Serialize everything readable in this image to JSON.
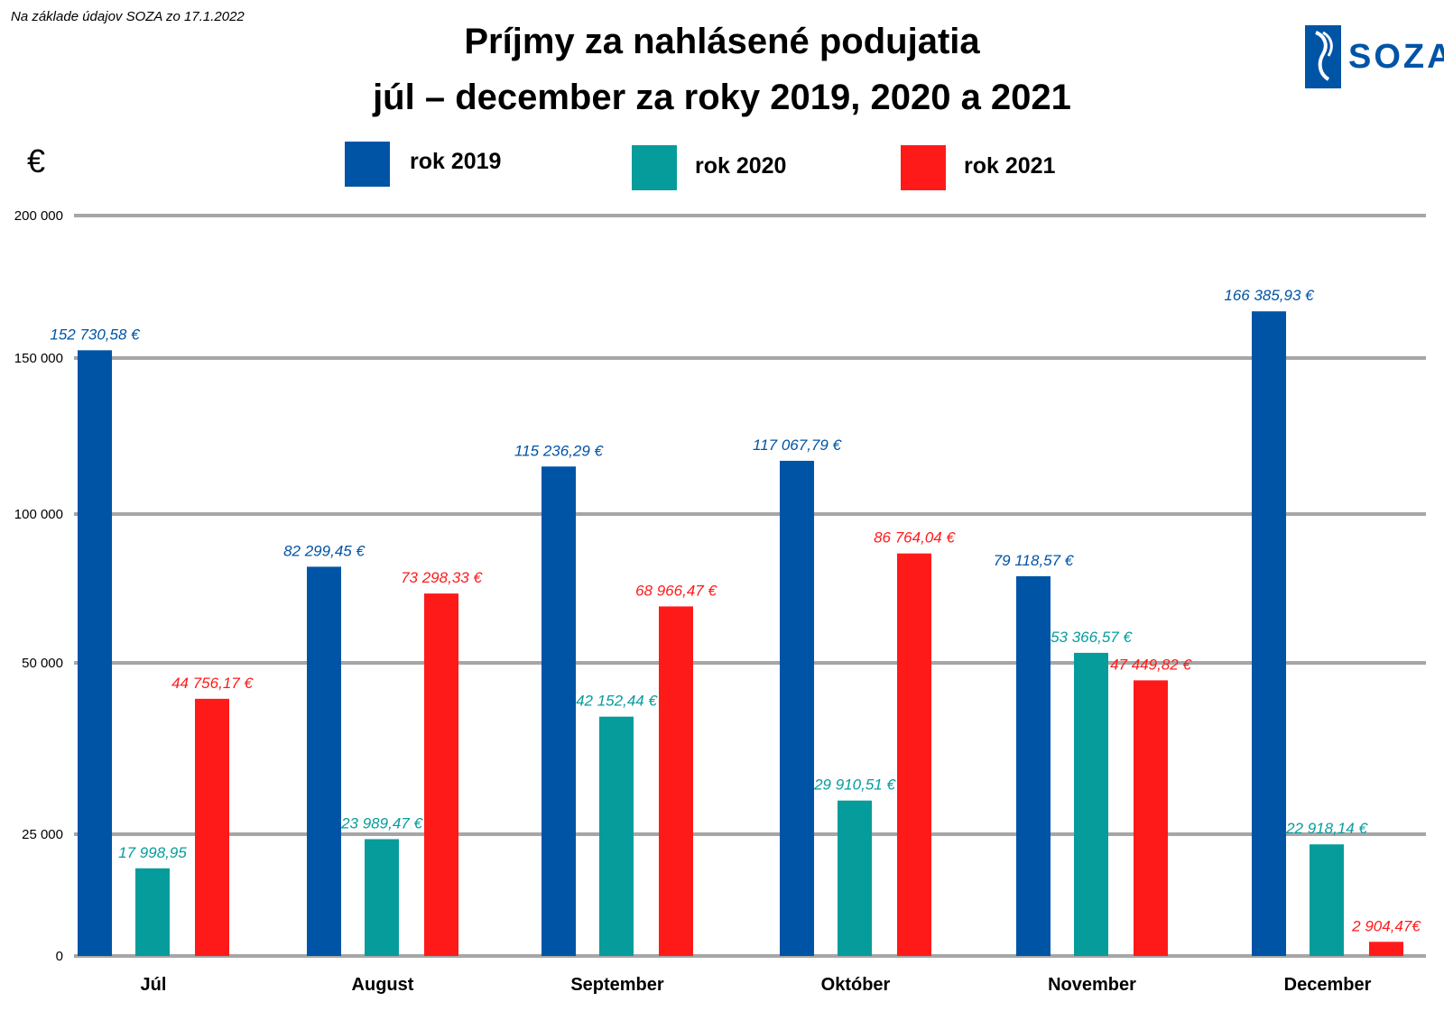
{
  "note": "Na základe údajov SOZA zo 17.1.2022",
  "title_line1": "Príjmy za nahlásené podujatia",
  "title_line2": "júl – december za roky 2019, 2020 a 2021",
  "logo": {
    "text": "SOZA",
    "icon": "soza-logo-icon"
  },
  "colors": {
    "rok2019": "#0054a6",
    "rok2020": "#079c9c",
    "rok2021": "#ff1a1a",
    "grid": "#a6a6a6"
  },
  "chart_data": {
    "type": "bar",
    "ylabel": "€",
    "categories": [
      "Júl",
      "August",
      "September",
      "Október",
      "November",
      "December"
    ],
    "series": [
      {
        "name": "rok 2019",
        "values": [
          152730.58,
          82299.45,
          115236.29,
          117067.79,
          79118.57,
          166385.93
        ],
        "labels": [
          "152 730,58 €",
          "82 299,45 €",
          "115 236,29 €",
          "117 067,79 €",
          "79 118,57 €",
          "166 385,93 €"
        ]
      },
      {
        "name": "rok 2020",
        "values": [
          17998.95,
          23989.47,
          42152.44,
          29910.51,
          53366.57,
          22918.14
        ],
        "labels": [
          "17 998,95",
          "23 989,47 €",
          "42 152,44 €",
          "29 910,51 €",
          "53 366,57 €",
          "22 918,14 €"
        ]
      },
      {
        "name": "rok 2021",
        "values": [
          44756.17,
          73298.33,
          68966.47,
          86764.04,
          47449.82,
          2904.47
        ],
        "labels": [
          "44 756,17 €",
          "73 298,33 €",
          "68 966,47 €",
          "86 764,04 €",
          "47 449,82 €",
          "2 904,47€"
        ]
      }
    ],
    "yticks": [
      {
        "value": 0,
        "label": "0"
      },
      {
        "value": 25000,
        "label": "25 000"
      },
      {
        "value": 50000,
        "label": "50 000"
      },
      {
        "value": 100000,
        "label": "100 000"
      },
      {
        "value": 150000,
        "label": "150 000"
      },
      {
        "value": 200000,
        "label": "200 000"
      }
    ],
    "ylim": [
      0,
      200000
    ],
    "grid": true,
    "legend": "top"
  }
}
